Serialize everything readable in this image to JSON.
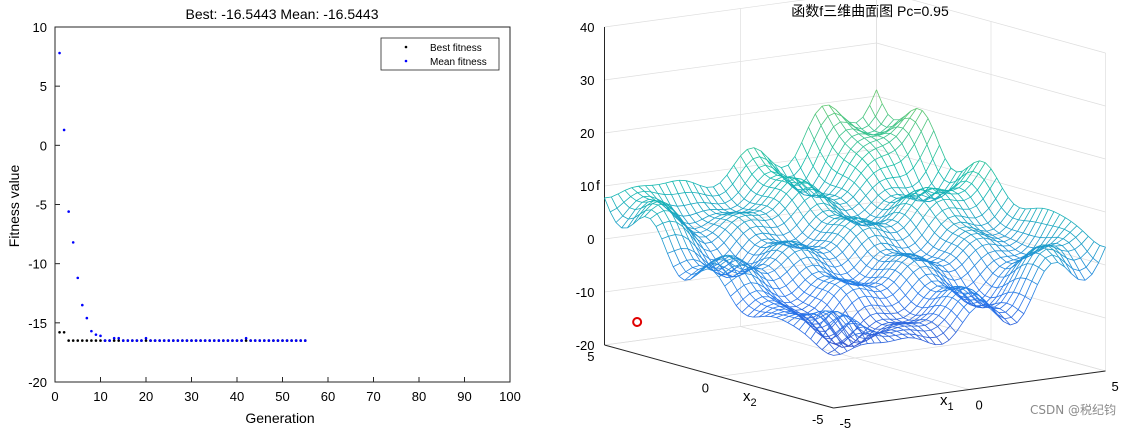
{
  "chart_data": [
    {
      "type": "scatter",
      "title": "Best: -16.5443 Mean: -16.5443",
      "xlabel": "Generation",
      "ylabel": "Fitness value",
      "xlim": [
        0,
        100
      ],
      "ylim": [
        -20,
        10
      ],
      "xticks": [
        "0",
        "10",
        "20",
        "30",
        "40",
        "50",
        "60",
        "70",
        "80",
        "90",
        "100"
      ],
      "yticks": [
        "10",
        "5",
        "0",
        "-5",
        "-10",
        "-15",
        "-20"
      ],
      "legend": {
        "placement": "top-right",
        "entries": [
          "Best fitness",
          "Mean fitness"
        ]
      },
      "series": [
        {
          "name": "Best fitness",
          "color": "#000000",
          "x": [
            1,
            2,
            3,
            4,
            5,
            6,
            7,
            8,
            9,
            10,
            11,
            12,
            13,
            14,
            15,
            16,
            17,
            18,
            19,
            20,
            21,
            22,
            23,
            24,
            25,
            26,
            27,
            28,
            29,
            30,
            31,
            32,
            33,
            34,
            35,
            36,
            37,
            38,
            39,
            40,
            41,
            42,
            43,
            44,
            45,
            46,
            47,
            48,
            49,
            50,
            51,
            52,
            53,
            54,
            55
          ],
          "y": [
            -15.8,
            -15.8,
            -16.5,
            -16.5,
            -16.5,
            -16.5,
            -16.5,
            -16.5,
            -16.5,
            -16.5,
            -16.5,
            -16.5,
            -16.5,
            -16.5,
            -16.5,
            -16.5,
            -16.5,
            -16.5,
            -16.5,
            -16.5,
            -16.5,
            -16.5,
            -16.5,
            -16.5,
            -16.5,
            -16.5,
            -16.5,
            -16.5,
            -16.5,
            -16.5,
            -16.5,
            -16.5,
            -16.5,
            -16.5,
            -16.5,
            -16.5,
            -16.5,
            -16.5,
            -16.5,
            -16.5,
            -16.5,
            -16.5,
            -16.5,
            -16.5,
            -16.5,
            -16.5,
            -16.5,
            -16.5,
            -16.5,
            -16.5,
            -16.5,
            -16.5,
            -16.5,
            -16.5,
            -16.5
          ]
        },
        {
          "name": "Mean fitness",
          "color": "#0000ff",
          "x": [
            1,
            2,
            3,
            4,
            5,
            6,
            7,
            8,
            9,
            10,
            11,
            12,
            13,
            14,
            15,
            16,
            17,
            18,
            19,
            20,
            21,
            22,
            23,
            24,
            25,
            26,
            27,
            28,
            29,
            30,
            31,
            32,
            33,
            34,
            35,
            36,
            37,
            38,
            39,
            40,
            41,
            42,
            43,
            44,
            45,
            46,
            47,
            48,
            49,
            50,
            51,
            52,
            53,
            54,
            55
          ],
          "y": [
            7.8,
            1.3,
            -5.6,
            -8.2,
            -11.2,
            -13.5,
            -14.6,
            -15.7,
            -16.0,
            -16.1,
            -16.5,
            -16.5,
            -16.3,
            -16.3,
            -16.5,
            -16.5,
            -16.5,
            -16.5,
            -16.5,
            -16.3,
            -16.5,
            -16.5,
            -16.5,
            -16.5,
            -16.5,
            -16.5,
            -16.5,
            -16.5,
            -16.5,
            -16.5,
            -16.5,
            -16.5,
            -16.5,
            -16.5,
            -16.5,
            -16.5,
            -16.5,
            -16.5,
            -16.5,
            -16.5,
            -16.5,
            -16.3,
            -16.5,
            -16.5,
            -16.5,
            -16.5,
            -16.5,
            -16.5,
            -16.5,
            -16.5,
            -16.5,
            -16.5,
            -16.5,
            -16.5,
            -16.5
          ]
        }
      ]
    },
    {
      "type": "surface",
      "title": "函数f三维曲面图 Pc=0.95",
      "xlabel": "x",
      "xlabel_sub": "1",
      "ylabel": "x",
      "ylabel_sub": "2",
      "zlabel": "f",
      "xlim": [
        -5,
        5
      ],
      "ylim": [
        -5,
        5
      ],
      "zlim": [
        -20,
        40
      ],
      "xticks": [
        "-5",
        "0",
        "5"
      ],
      "yticks": [
        "-5",
        "0",
        "5"
      ],
      "zticks": [
        "40",
        "30",
        "20",
        "10",
        "0",
        "-10",
        "-20"
      ],
      "grid": true,
      "marker": {
        "x": -3.8,
        "y": 5,
        "z": -16.5,
        "color": "#e00000"
      }
    }
  ],
  "watermark": "CSDN @税纪钧"
}
